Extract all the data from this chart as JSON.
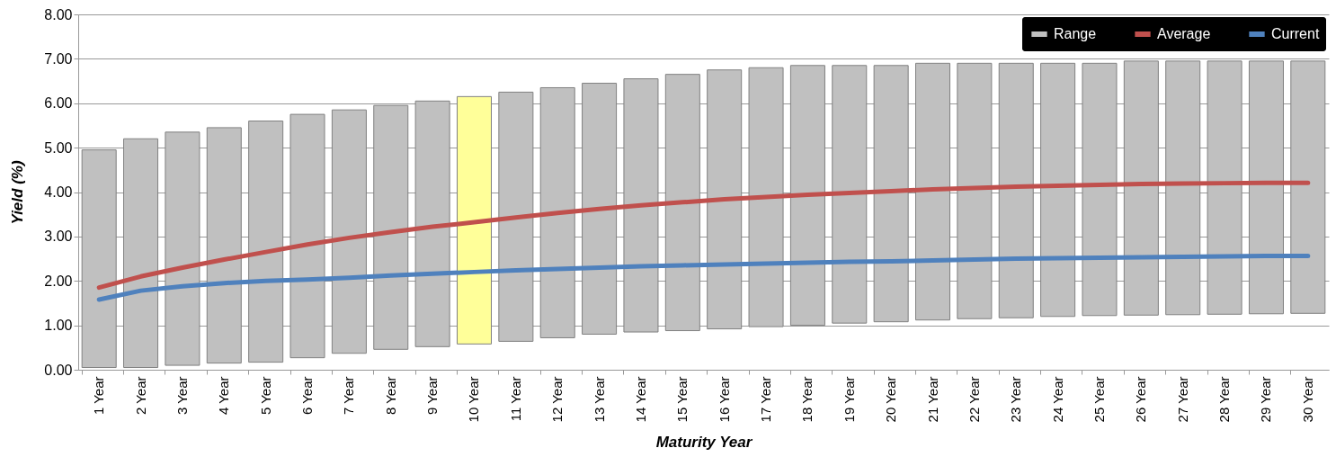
{
  "chart_data": {
    "type": "bar",
    "xlabel": "Maturity Year",
    "ylabel": "Yield (%)",
    "categories": [
      "1 Year",
      "2 Year",
      "3 Year",
      "4 Year",
      "5 Year",
      "6 Year",
      "7 Year",
      "8 Year",
      "9 Year",
      "10 Year",
      "11 Year",
      "12 Year",
      "13 Year",
      "14 Year",
      "15 Year",
      "16 Year",
      "17 Year",
      "18 Year",
      "19 Year",
      "20 Year",
      "21 Year",
      "22 Year",
      "23 Year",
      "24 Year",
      "25 Year",
      "26 Year",
      "27 Year",
      "28 Year",
      "29 Year",
      "30 Year"
    ],
    "series": [
      {
        "name": "Range",
        "color": "#c0c0c0",
        "colors": [
          "#c0c0c0",
          "#c0c0c0",
          "#c0c0c0",
          "#c0c0c0",
          "#c0c0c0",
          "#c0c0c0",
          "#c0c0c0",
          "#c0c0c0",
          "#c0c0c0",
          "#ffff99",
          "#c0c0c0",
          "#c0c0c0",
          "#c0c0c0",
          "#c0c0c0",
          "#c0c0c0",
          "#c0c0c0",
          "#c0c0c0",
          "#c0c0c0",
          "#c0c0c0",
          "#c0c0c0",
          "#c0c0c0",
          "#c0c0c0",
          "#c0c0c0",
          "#c0c0c0",
          "#c0c0c0",
          "#c0c0c0",
          "#c0c0c0",
          "#c0c0c0",
          "#c0c0c0",
          "#c0c0c0"
        ],
        "base": [
          0.05,
          0.05,
          0.1,
          0.15,
          0.17,
          0.27,
          0.37,
          0.46,
          0.52,
          0.58,
          0.64,
          0.72,
          0.8,
          0.85,
          0.88,
          0.92,
          0.97,
          1.0,
          1.05,
          1.08,
          1.12,
          1.15,
          1.17,
          1.2,
          1.22,
          1.23,
          1.24,
          1.25,
          1.26,
          1.27
        ],
        "values": [
          4.9,
          5.15,
          5.25,
          5.3,
          5.43,
          5.48,
          5.48,
          5.49,
          5.53,
          5.57,
          5.61,
          5.63,
          5.65,
          5.7,
          5.77,
          5.83,
          5.83,
          5.85,
          5.8,
          5.77,
          5.78,
          5.75,
          5.73,
          5.7,
          5.68,
          5.72,
          5.71,
          5.7,
          5.69,
          5.68
        ]
      },
      {
        "name": "Average",
        "type": "line",
        "color": "#c0504d",
        "values": [
          1.85,
          2.1,
          2.3,
          2.48,
          2.65,
          2.82,
          2.97,
          3.1,
          3.22,
          3.32,
          3.43,
          3.53,
          3.62,
          3.7,
          3.77,
          3.84,
          3.89,
          3.94,
          3.98,
          4.02,
          4.06,
          4.09,
          4.12,
          4.14,
          4.16,
          4.18,
          4.19,
          4.2,
          4.21,
          4.21
        ]
      },
      {
        "name": "Current",
        "type": "line",
        "color": "#4f81bd",
        "values": [
          1.58,
          1.78,
          1.88,
          1.95,
          2.0,
          2.03,
          2.07,
          2.12,
          2.16,
          2.2,
          2.24,
          2.27,
          2.3,
          2.33,
          2.35,
          2.37,
          2.39,
          2.41,
          2.43,
          2.44,
          2.46,
          2.48,
          2.5,
          2.51,
          2.52,
          2.53,
          2.54,
          2.55,
          2.56,
          2.56
        ]
      }
    ],
    "ylim": [
      0,
      8
    ],
    "yticks": [
      {
        "value": 0,
        "label": "0.00"
      },
      {
        "value": 1,
        "label": "1.00"
      },
      {
        "value": 2,
        "label": "2.00"
      },
      {
        "value": 3,
        "label": "3.00"
      },
      {
        "value": 4,
        "label": "4.00"
      },
      {
        "value": 5,
        "label": "5.00"
      },
      {
        "value": 6,
        "label": "6.00"
      },
      {
        "value": 7,
        "label": "7.00"
      },
      {
        "value": 8,
        "label": "8.00"
      }
    ],
    "grid": "y",
    "legend": "top right",
    "marker": "none",
    "line_style": "solid"
  }
}
